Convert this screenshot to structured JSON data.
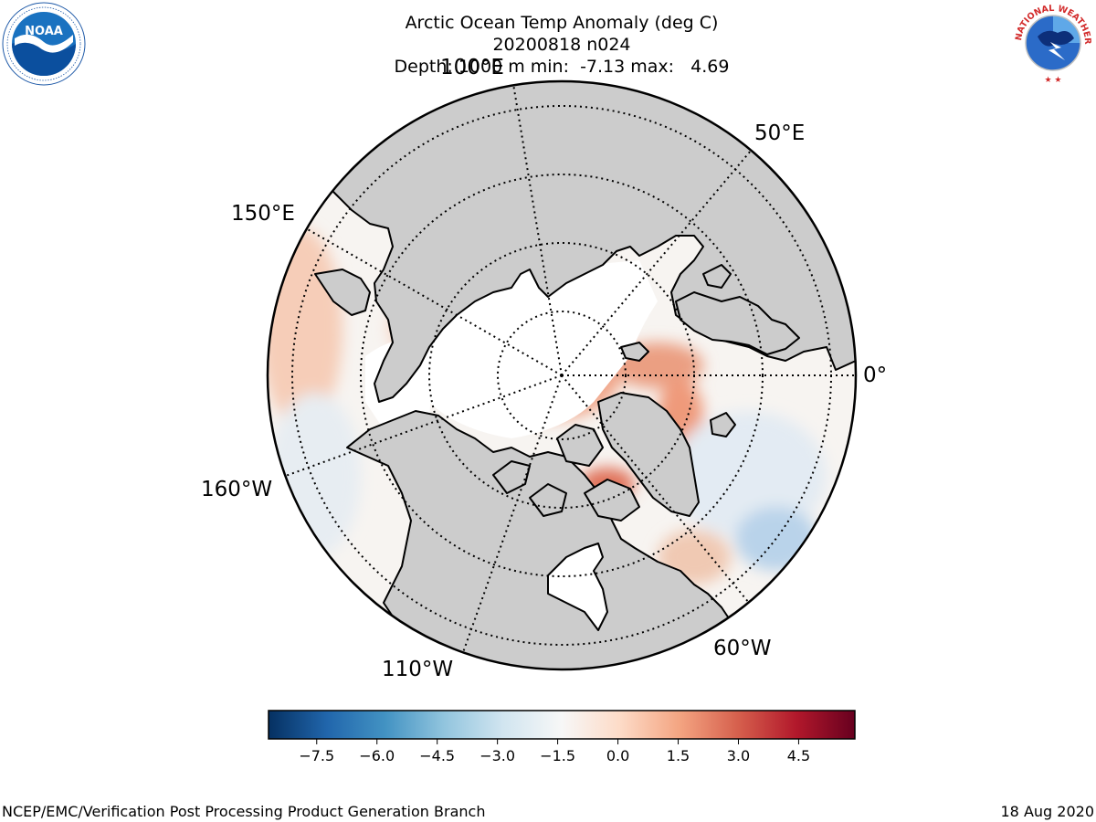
{
  "title": {
    "line1": "Arctic Ocean Temp Anomaly (deg C)",
    "line2": "20200818 n024",
    "line3": "Depth: 1000 m min:  -7.13 max:   4.69"
  },
  "map": {
    "projection": "north-polar-stereographic",
    "land_color": "#cccccc",
    "ice_color": "#ffffff",
    "longitude_labels": [
      "100°E",
      "50°E",
      "0°",
      "60°W",
      "110°W",
      "160°W",
      "150°E"
    ],
    "anomaly_pattern": "mostly weak positive anomalies, strongest near Barents/Kara and Baffin Bay; weak negative anomalies in Nordic Seas and near Labrador"
  },
  "colorbar": {
    "colormap": "RdBu_r",
    "min": -8.7,
    "max": 5.9,
    "ticks": [
      "−7.5",
      "−6.0",
      "−4.5",
      "−3.0",
      "−1.5",
      "0.0",
      "1.5",
      "3.0",
      "4.5"
    ],
    "tick_values": [
      -7.5,
      -6.0,
      -4.5,
      -3.0,
      -1.5,
      0.0,
      1.5,
      3.0,
      4.5
    ],
    "colors": [
      "#053061",
      "#2166ac",
      "#4393c3",
      "#92c5de",
      "#d1e5f0",
      "#f7f7f7",
      "#fddbc7",
      "#f4a582",
      "#d6604d",
      "#b2182b",
      "#67001f"
    ]
  },
  "footer": {
    "left": "NCEP/EMC/Verification Post Processing Product Generation Branch",
    "right": "18 Aug 2020"
  },
  "logos": {
    "left": {
      "name": "noaa-logo",
      "text": "NOAA"
    },
    "right": {
      "name": "nws-logo",
      "text": "NATIONAL WEATHER SERVICE"
    }
  }
}
